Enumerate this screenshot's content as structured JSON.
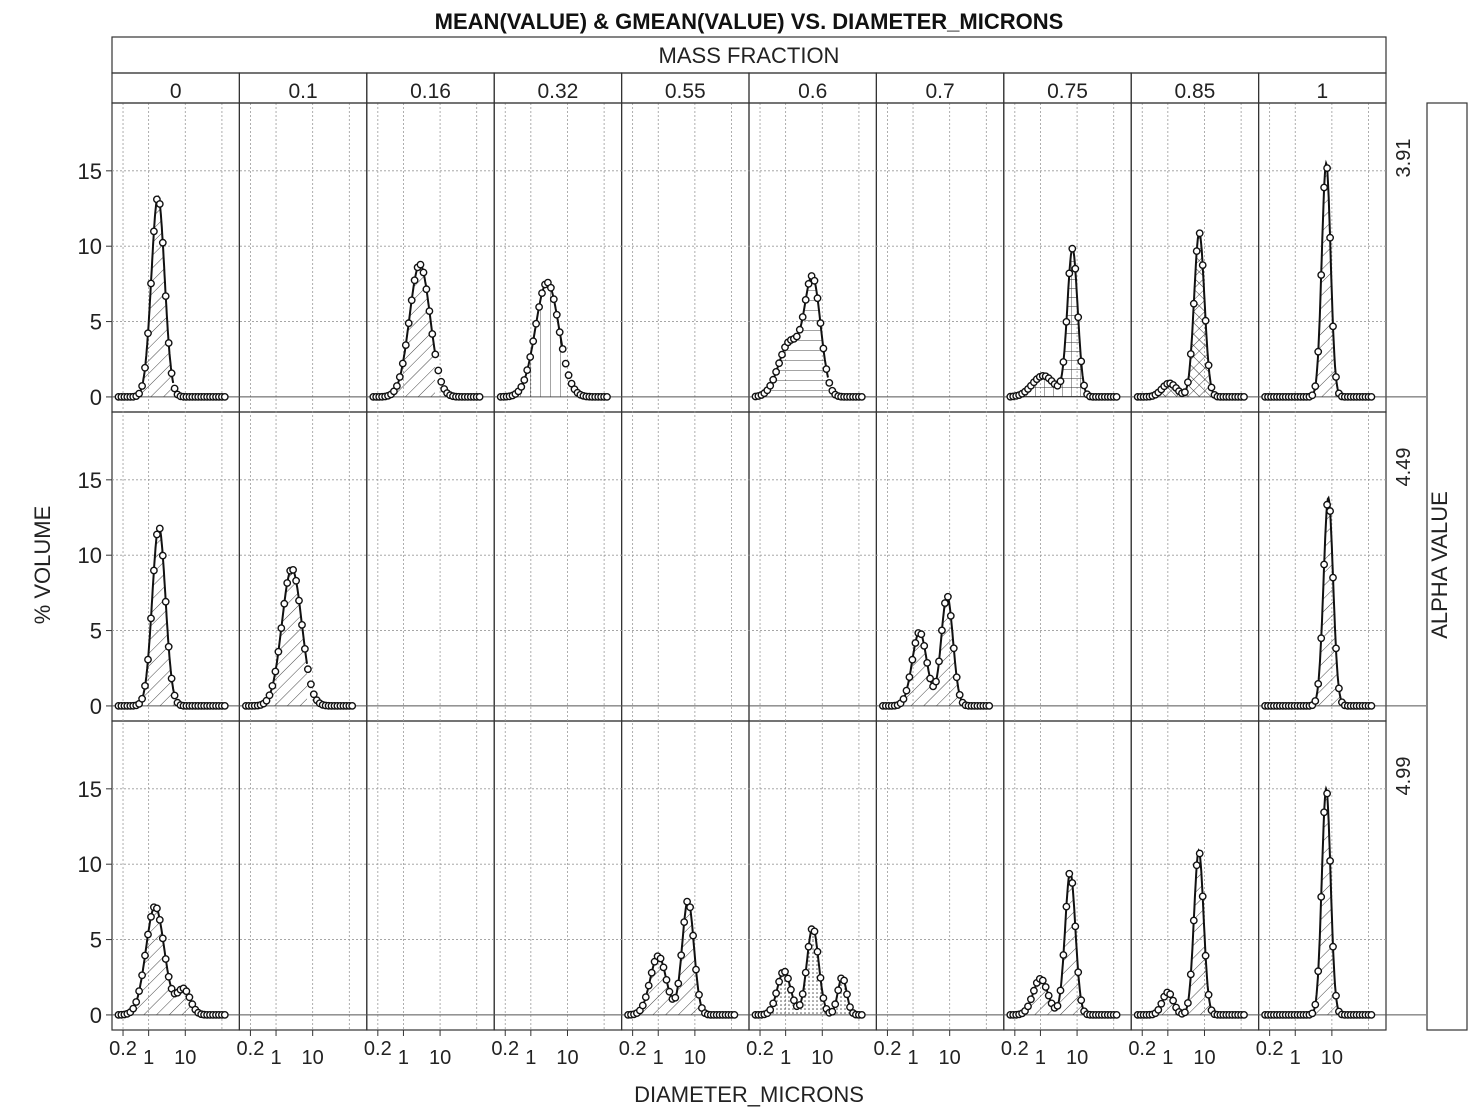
{
  "chart_data": {
    "type": "area",
    "title": "MEAN(VALUE) & GMEAN(VALUE) VS. DIAMETER_MICRONS",
    "col_facet_label": "MASS FRACTION",
    "row_facet_label": "ALPHA VALUE",
    "xlabel": "DIAMETER_MICRONS",
    "ylabel": "% VOLUME",
    "x_scale": "log",
    "xlim": [
      0.1,
      300
    ],
    "ylim": [
      -1,
      19.5
    ],
    "x_ticks": [
      "0.2",
      "1",
      "10"
    ],
    "y_ticks": [
      "0",
      "5",
      "10",
      "15"
    ],
    "grid": true,
    "columns": [
      "0",
      "0.1",
      "0.16",
      "0.32",
      "0.55",
      "0.6",
      "0.7",
      "0.75",
      "0.85",
      "1"
    ],
    "rows": [
      "3.91",
      "4.49",
      "4.99"
    ],
    "panels": [
      {
        "row": "3.91",
        "col": "0",
        "fill": "diag",
        "peaks": [
          [
            1.8,
            13.3,
            0.18
          ]
        ]
      },
      {
        "row": "3.91",
        "col": "0.16",
        "fill": "diag",
        "peaks": [
          [
            2.8,
            8.8,
            0.28
          ]
        ]
      },
      {
        "row": "3.91",
        "col": "0.32",
        "fill": "vert",
        "peaks": [
          [
            2.8,
            7.6,
            0.32
          ]
        ]
      },
      {
        "row": "3.91",
        "col": "0.6",
        "fill": "horiz",
        "peaks": [
          [
            1.3,
            3.6,
            0.3
          ],
          [
            5.5,
            7.6,
            0.22
          ]
        ]
      },
      {
        "row": "3.91",
        "col": "0.75",
        "fill": "grid",
        "peaks": [
          [
            1.2,
            1.4,
            0.3
          ],
          [
            7.5,
            9.8,
            0.14
          ]
        ]
      },
      {
        "row": "3.91",
        "col": "0.85",
        "fill": "cross",
        "peaks": [
          [
            1.1,
            0.9,
            0.2
          ],
          [
            7.2,
            10.9,
            0.14
          ]
        ]
      },
      {
        "row": "3.91",
        "col": "1",
        "fill": "diag",
        "peaks": [
          [
            7.0,
            15.5,
            0.12
          ]
        ]
      },
      {
        "row": "4.49",
        "col": "0",
        "fill": "diag",
        "peaks": [
          [
            1.9,
            11.9,
            0.18
          ]
        ]
      },
      {
        "row": "4.49",
        "col": "0.1",
        "fill": "diag",
        "peaks": [
          [
            2.7,
            9.1,
            0.27
          ]
        ]
      },
      {
        "row": "4.49",
        "col": "0.7",
        "fill": "diag",
        "peaks": [
          [
            1.5,
            4.9,
            0.2
          ],
          [
            8.5,
            7.3,
            0.16
          ]
        ]
      },
      {
        "row": "4.49",
        "col": "1",
        "fill": "diag",
        "peaks": [
          [
            8.0,
            13.8,
            0.13
          ]
        ]
      },
      {
        "row": "4.99",
        "col": "0",
        "fill": "diag",
        "peaks": [
          [
            1.5,
            7.2,
            0.25
          ],
          [
            9.0,
            1.7,
            0.18
          ]
        ]
      },
      {
        "row": "4.99",
        "col": "0.55",
        "fill": "diag",
        "peaks": [
          [
            1.0,
            3.9,
            0.22
          ],
          [
            6.5,
            7.6,
            0.16
          ]
        ]
      },
      {
        "row": "4.99",
        "col": "0.6",
        "fill": "dots",
        "peaks": [
          [
            0.9,
            2.9,
            0.18
          ],
          [
            5.5,
            5.8,
            0.16
          ],
          [
            35,
            2.5,
            0.12
          ]
        ]
      },
      {
        "row": "4.99",
        "col": "0.75",
        "fill": "diag",
        "peaks": [
          [
            1.0,
            2.4,
            0.2
          ],
          [
            6.5,
            9.5,
            0.14
          ]
        ]
      },
      {
        "row": "4.99",
        "col": "0.85",
        "fill": "diag",
        "peaks": [
          [
            1.0,
            1.5,
            0.15
          ],
          [
            7.0,
            10.9,
            0.13
          ]
        ]
      },
      {
        "row": "4.99",
        "col": "1",
        "fill": "diag",
        "peaks": [
          [
            7.0,
            15.0,
            0.12
          ]
        ]
      }
    ]
  }
}
